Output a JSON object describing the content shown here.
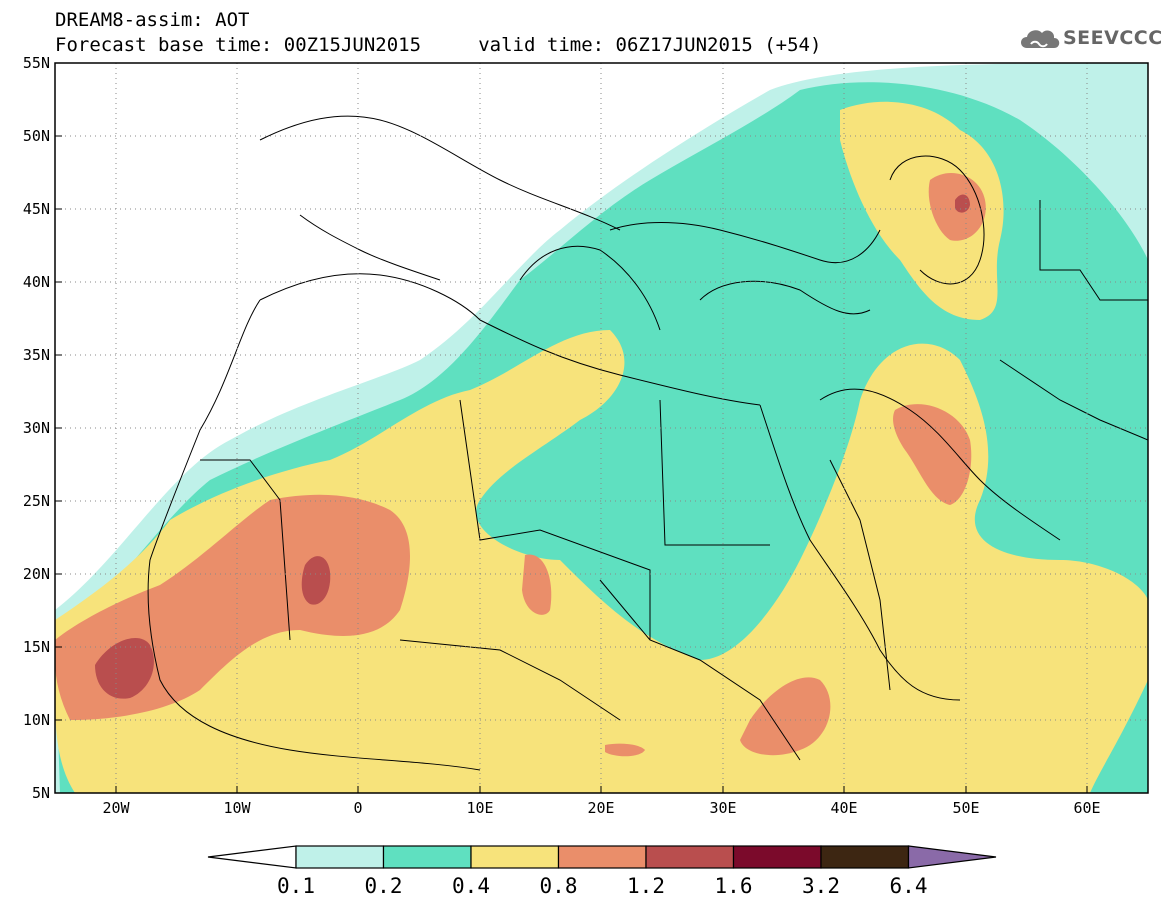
{
  "header": {
    "line1": "DREAM8-assim: AOT",
    "line2": "Forecast base time: 00Z15JUN2015     valid time: 06Z17JUN2015 (+54)",
    "logo_text": "SEEVCCC"
  },
  "map": {
    "lon_range": [
      -25,
      65
    ],
    "lat_range": [
      5,
      55
    ],
    "lat_ticks": [
      "5N",
      "10N",
      "15N",
      "20N",
      "25N",
      "30N",
      "35N",
      "40N",
      "45N",
      "50N",
      "55N"
    ],
    "lon_ticks": [
      "20W",
      "10W",
      "0",
      "10E",
      "20E",
      "30E",
      "40E",
      "50E",
      "60E"
    ],
    "grid": true
  },
  "colorbar": {
    "labels": [
      "0.1",
      "0.2",
      "0.4",
      "0.8",
      "1.2",
      "1.6",
      "3.2",
      "6.4"
    ],
    "colors": [
      "#ffffff",
      "#bff1e9",
      "#5fe0c0",
      "#f7e37b",
      "#ea8e6a",
      "#b94e4e",
      "#7b0a2b",
      "#3d2612",
      "#8a6aa8"
    ]
  }
}
